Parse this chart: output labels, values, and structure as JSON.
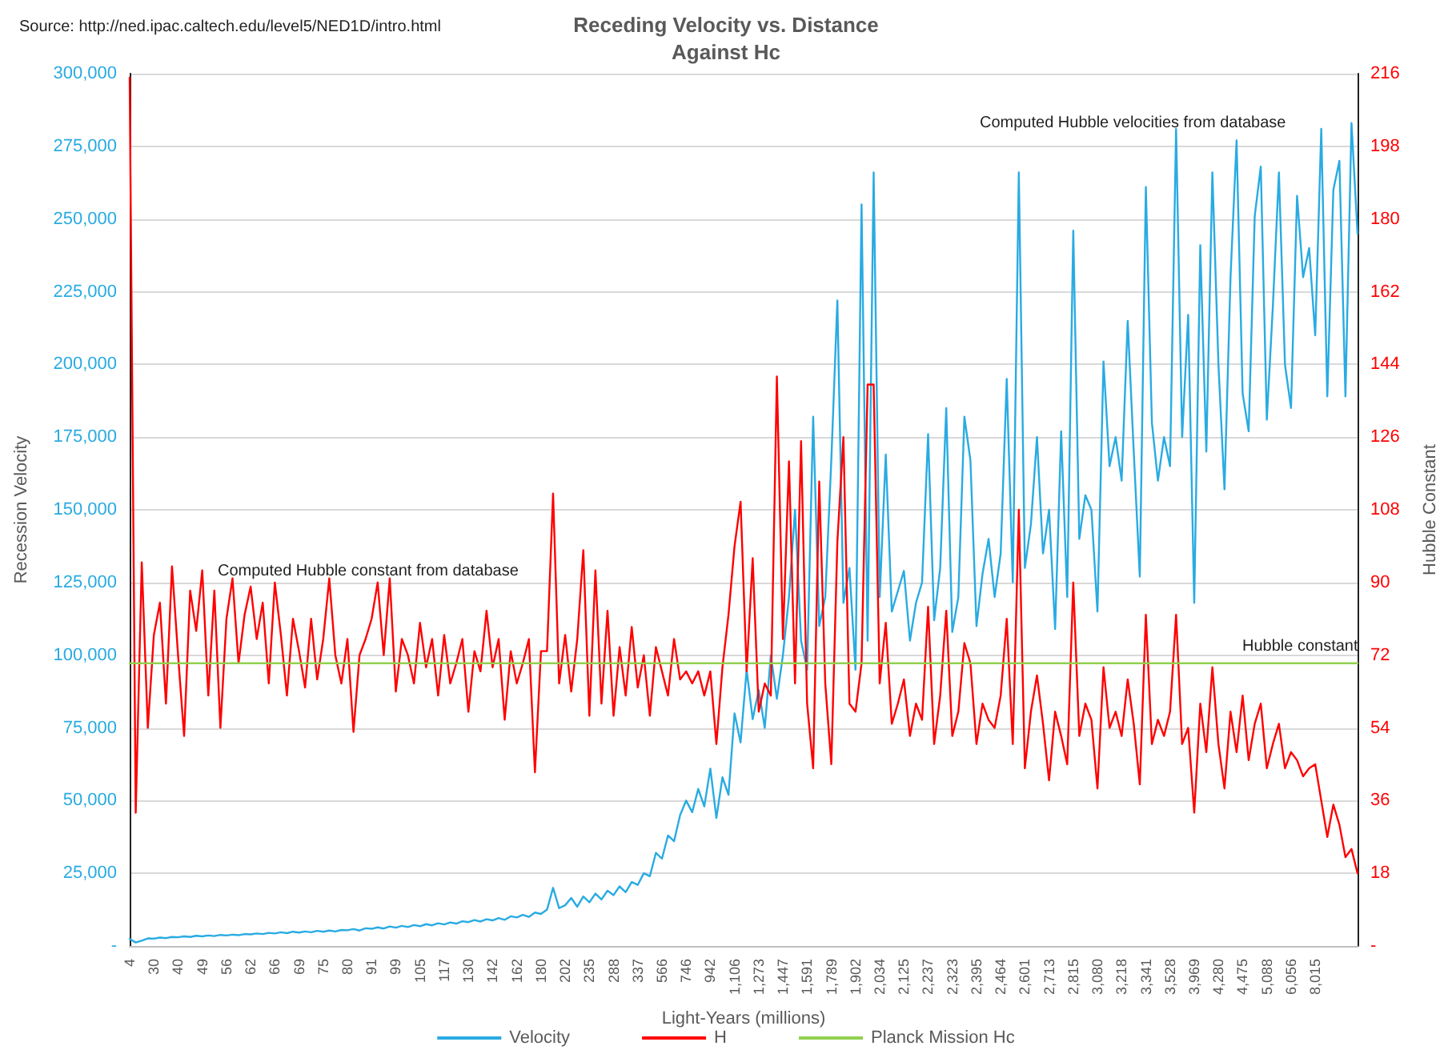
{
  "chart_data": {
    "type": "line",
    "title": "Receding Velocity vs. Distance",
    "subtitle": "Against Hc",
    "xlabel": "Light-Years (millions)",
    "ylabel": "Recession Velocity",
    "y2label": "Hubble Constant",
    "annotations": [
      "Source: http://ned.ipac.caltech.edu/level5/NED1D/intro.html",
      "Computed Hubble constant from database",
      "Computed Hubble velocities from database",
      "Hubble constant"
    ],
    "categories": [
      "4",
      null,
      null,
      null,
      "30",
      null,
      null,
      null,
      "40",
      null,
      null,
      null,
      "49",
      null,
      null,
      null,
      "56",
      null,
      null,
      null,
      "62",
      null,
      null,
      null,
      "66",
      null,
      null,
      null,
      "69",
      null,
      null,
      null,
      "75",
      null,
      null,
      null,
      "80",
      null,
      null,
      null,
      "91",
      null,
      null,
      null,
      "99",
      null,
      null,
      null,
      "105",
      null,
      null,
      null,
      "117",
      null,
      null,
      null,
      "130",
      null,
      null,
      null,
      "142",
      null,
      null,
      null,
      "162",
      null,
      null,
      null,
      "180",
      null,
      null,
      null,
      "202",
      null,
      null,
      null,
      "235",
      null,
      null,
      null,
      "288",
      null,
      null,
      null,
      "337",
      null,
      null,
      null,
      "566",
      null,
      null,
      null,
      "746",
      null,
      null,
      null,
      "942",
      null,
      null,
      null,
      "1,106",
      null,
      null,
      null,
      "1,273",
      null,
      null,
      null,
      "1,447",
      null,
      null,
      null,
      "1,591",
      null,
      null,
      null,
      "1,789",
      null,
      null,
      null,
      "1,902",
      null,
      null,
      null,
      "2,034",
      null,
      null,
      null,
      "2,125",
      null,
      null,
      null,
      "2,237",
      null,
      null,
      null,
      "2,323",
      null,
      null,
      null,
      "2,395",
      null,
      null,
      null,
      "2,464",
      null,
      null,
      null,
      "2,601",
      null,
      null,
      null,
      "2,713",
      null,
      null,
      null,
      "2,815",
      null,
      null,
      null,
      "3,080",
      null,
      null,
      null,
      "3,218",
      null,
      null,
      null,
      "3,341",
      null,
      null,
      null,
      "3,528",
      null,
      null,
      null,
      "3,969",
      null,
      null,
      null,
      "4,280",
      null,
      null,
      null,
      "4,475",
      null,
      null,
      null,
      "5,088",
      null,
      null,
      null,
      "6,056",
      null,
      null,
      null,
      "8,015",
      null,
      null,
      null,
      null,
      null,
      null,
      null
    ],
    "series": [
      {
        "name": "Velocity",
        "color": "#29abe2",
        "values": [
          2400,
          1200,
          1800,
          2600,
          2500,
          2900,
          2700,
          3100,
          3000,
          3300,
          3100,
          3500,
          3300,
          3600,
          3400,
          3800,
          3600,
          3900,
          3700,
          4100,
          4000,
          4300,
          4100,
          4500,
          4300,
          4700,
          4400,
          4900,
          4600,
          5000,
          4700,
          5200,
          4900,
          5300,
          5000,
          5500,
          5400,
          5800,
          5300,
          6100,
          5900,
          6400,
          6000,
          6700,
          6300,
          6900,
          6500,
          7200,
          6800,
          7500,
          7100,
          7800,
          7400,
          8100,
          7700,
          8500,
          8200,
          8900,
          8400,
          9200,
          8800,
          9600,
          9000,
          10200,
          9800,
          10700,
          10000,
          11500,
          11000,
          12500,
          20000,
          13000,
          14000,
          16500,
          13500,
          17000,
          15000,
          18000,
          16000,
          19000,
          17500,
          20500,
          18500,
          22000,
          21000,
          25000,
          24000,
          32000,
          30000,
          38000,
          36000,
          45000,
          50000,
          46000,
          54000,
          48000,
          61000,
          44000,
          58000,
          52000,
          80000,
          70000,
          95000,
          78000,
          88000,
          75000,
          100000,
          85000,
          100000,
          120000,
          150000,
          105000,
          95000,
          182000,
          110000,
          120000,
          167000,
          222000,
          118000,
          130000,
          95000,
          255000,
          105000,
          266000,
          120000,
          169000,
          115000,
          122000,
          129000,
          105000,
          118000,
          125000,
          176000,
          112000,
          130000,
          185000,
          108000,
          120000,
          182000,
          167000,
          110000,
          128000,
          140000,
          120000,
          135000,
          195000,
          125000,
          266000,
          130000,
          145000,
          175000,
          135000,
          150000,
          109000,
          177000,
          120000,
          246000,
          140000,
          155000,
          150000,
          115000,
          201000,
          165000,
          175000,
          160000,
          215000,
          170000,
          127000,
          261000,
          180000,
          160000,
          175000,
          165000,
          281000,
          175000,
          217000,
          118000,
          241000,
          170000,
          266000,
          200000,
          157000,
          230000,
          277000,
          190000,
          177000,
          251000,
          268000,
          181000,
          220000,
          266000,
          200000,
          185000,
          258000,
          230000,
          240000,
          210000,
          281000,
          189000,
          260000,
          270000,
          189000,
          283000,
          245000
        ]
      },
      {
        "name": "H",
        "color": "#ff0000",
        "axis": "y2",
        "values": [
          215,
          33,
          95,
          54,
          77,
          85,
          60,
          94,
          72,
          52,
          88,
          78,
          93,
          62,
          88,
          54,
          81,
          91,
          70,
          82,
          89,
          76,
          85,
          65,
          90,
          77,
          62,
          81,
          73,
          64,
          81,
          66,
          76,
          91,
          72,
          65,
          76,
          53,
          72,
          76,
          81,
          90,
          72,
          91,
          63,
          76,
          72,
          65,
          80,
          69,
          76,
          62,
          77,
          65,
          70,
          76,
          58,
          73,
          68,
          83,
          69,
          76,
          56,
          73,
          65,
          70,
          76,
          43,
          73,
          73,
          112,
          65,
          77,
          63,
          76,
          98,
          57,
          93,
          60,
          83,
          57,
          74,
          62,
          79,
          64,
          72,
          57,
          74,
          68,
          62,
          76,
          66,
          68,
          65,
          68,
          62,
          68,
          50,
          69,
          82,
          99,
          110,
          68,
          96,
          58,
          65,
          62,
          141,
          76,
          120,
          65,
          125,
          60,
          44,
          115,
          65,
          45,
          100,
          126,
          60,
          58,
          70,
          139,
          139,
          65,
          80,
          55,
          60,
          66,
          52,
          60,
          56,
          84,
          50,
          62,
          83,
          52,
          58,
          75,
          70,
          50,
          60,
          56,
          54,
          62,
          81,
          50,
          108,
          44,
          58,
          67,
          55,
          41,
          58,
          52,
          45,
          90,
          52,
          60,
          56,
          39,
          69,
          54,
          58,
          52,
          66,
          55,
          40,
          82,
          50,
          56,
          52,
          58,
          82,
          50,
          54,
          33,
          60,
          48,
          69,
          50,
          39,
          58,
          48,
          62,
          46,
          55,
          60,
          44,
          50,
          55,
          44,
          48,
          46,
          42,
          44,
          45,
          36,
          27,
          35,
          30,
          22,
          24,
          18
        ]
      },
      {
        "name": "Planck Mission Hc",
        "color": "#92d050",
        "axis": "y2",
        "values": [
          70,
          70,
          70,
          70,
          70,
          70,
          70,
          70,
          70,
          70,
          70,
          70,
          70,
          70,
          70,
          70,
          70,
          70,
          70,
          70,
          70,
          70,
          70,
          70,
          70,
          70,
          70,
          70,
          70,
          70,
          70,
          70,
          70,
          70,
          70,
          70,
          70,
          70,
          70,
          70,
          70,
          70,
          70,
          70,
          70,
          70,
          70,
          70,
          70,
          70,
          70,
          70,
          70,
          70,
          70,
          70,
          70,
          70,
          70,
          70,
          70,
          70,
          70,
          70,
          70,
          70,
          70,
          70,
          70,
          70,
          70,
          70,
          70,
          70,
          70,
          70,
          70,
          70,
          70,
          70,
          70,
          70,
          70,
          70,
          70,
          70,
          70,
          70,
          70,
          70,
          70,
          70,
          70,
          70,
          70,
          70,
          70,
          70,
          70,
          70,
          70,
          70,
          70,
          70,
          70,
          70,
          70,
          70,
          70,
          70,
          70,
          70,
          70,
          70,
          70,
          70,
          70,
          70,
          70,
          70,
          70,
          70,
          70,
          70,
          70,
          70,
          70,
          70,
          70,
          70,
          70,
          70,
          70,
          70,
          70,
          70,
          70,
          70,
          70,
          70,
          70,
          70,
          70,
          70,
          70,
          70,
          70,
          70,
          70,
          70,
          70,
          70,
          70,
          70,
          70,
          70,
          70,
          70,
          70,
          70,
          70,
          70,
          70,
          70,
          70,
          70,
          70,
          70,
          70,
          70,
          70,
          70,
          70,
          70,
          70,
          70,
          70,
          70,
          70,
          70,
          70,
          70,
          70,
          70,
          70,
          70,
          70,
          70,
          70,
          70,
          70,
          70,
          70,
          70,
          70,
          70,
          70,
          70,
          70,
          70,
          70,
          70,
          70,
          70
        ]
      }
    ],
    "ylim": [
      0,
      300000
    ],
    "yticks": [
      {
        "value": 0,
        "label": "-"
      },
      {
        "value": 25000,
        "label": "25,000"
      },
      {
        "value": 50000,
        "label": "50,000"
      },
      {
        "value": 75000,
        "label": "75,000"
      },
      {
        "value": 100000,
        "label": "100,000"
      },
      {
        "value": 125000,
        "label": "125,000"
      },
      {
        "value": 150000,
        "label": "150,000"
      },
      {
        "value": 175000,
        "label": "175,000"
      },
      {
        "value": 200000,
        "label": "200,000"
      },
      {
        "value": 225000,
        "label": "225,000"
      },
      {
        "value": 250000,
        "label": "250,000"
      },
      {
        "value": 275000,
        "label": "275,000"
      },
      {
        "value": 300000,
        "label": "300,000"
      }
    ],
    "y2lim": [
      0,
      216
    ],
    "y2ticks": [
      {
        "value": 0,
        "label": "-"
      },
      18,
      36,
      54,
      72,
      90,
      108,
      126,
      144,
      162,
      180,
      198,
      216
    ],
    "grid": "y",
    "legend": "bottom",
    "marker": "none",
    "line_style": "solid"
  }
}
